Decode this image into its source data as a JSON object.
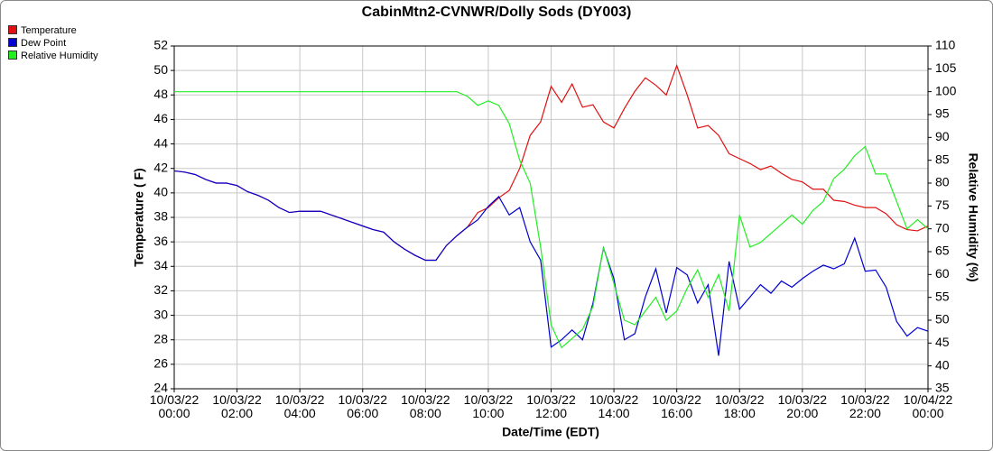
{
  "chart_data": {
    "type": "line",
    "title": "CabinMtn2-CVNWR/Dolly Sods (DY003)",
    "x_label": "Date/Time (EDT)",
    "y_label": "Temperature ( F)",
    "y2_label": "Relative Humidity (%)",
    "legend": "top-left",
    "grid": true,
    "xlim": [
      0,
      1440
    ],
    "xticks": [
      {
        "value": 0,
        "label": "10/03/22\n00:00"
      },
      {
        "value": 120,
        "label": "10/03/22\n02:00"
      },
      {
        "value": 240,
        "label": "10/03/22\n04:00"
      },
      {
        "value": 360,
        "label": "10/03/22\n06:00"
      },
      {
        "value": 480,
        "label": "10/03/22\n08:00"
      },
      {
        "value": 600,
        "label": "10/03/22\n10:00"
      },
      {
        "value": 720,
        "label": "10/03/22\n12:00"
      },
      {
        "value": 840,
        "label": "10/03/22\n14:00"
      },
      {
        "value": 960,
        "label": "10/03/22\n16:00"
      },
      {
        "value": 1080,
        "label": "10/03/22\n18:00"
      },
      {
        "value": 1200,
        "label": "10/03/22\n20:00"
      },
      {
        "value": 1320,
        "label": "10/03/22\n22:00"
      },
      {
        "value": 1440,
        "label": "10/04/22\n00:00"
      }
    ],
    "ylim": [
      24,
      52
    ],
    "yticks": [
      24,
      26,
      28,
      30,
      32,
      34,
      36,
      38,
      40,
      42,
      44,
      46,
      48,
      50,
      52
    ],
    "y2lim": [
      35,
      110
    ],
    "y2ticks": [
      35,
      40,
      45,
      50,
      55,
      60,
      65,
      70,
      75,
      80,
      85,
      90,
      95,
      100,
      105,
      110
    ],
    "x": [
      0,
      20,
      40,
      60,
      80,
      100,
      120,
      140,
      160,
      180,
      200,
      220,
      240,
      260,
      280,
      300,
      320,
      340,
      360,
      380,
      400,
      420,
      440,
      460,
      480,
      500,
      520,
      540,
      560,
      580,
      600,
      620,
      640,
      660,
      680,
      700,
      720,
      740,
      760,
      780,
      800,
      820,
      840,
      860,
      880,
      900,
      920,
      940,
      960,
      980,
      1000,
      1020,
      1040,
      1060,
      1080,
      1100,
      1120,
      1140,
      1160,
      1180,
      1200,
      1220,
      1240,
      1260,
      1280,
      1300,
      1320,
      1340,
      1360,
      1380,
      1400,
      1420,
      1440
    ],
    "series": [
      {
        "name": "Temperature",
        "color": "#e01010",
        "values": [
          41.8,
          41.7,
          41.5,
          41.1,
          40.8,
          40.8,
          40.6,
          40.1,
          39.8,
          39.4,
          38.8,
          38.4,
          38.5,
          38.5,
          38.5,
          38.2,
          37.9,
          37.6,
          37.3,
          37.0,
          36.8,
          36.0,
          35.4,
          34.9,
          34.5,
          34.5,
          35.7,
          36.5,
          37.2,
          38.4,
          38.8,
          39.6,
          40.2,
          42.0,
          44.7,
          45.8,
          48.7,
          47.4,
          48.9,
          47.0,
          47.2,
          45.8,
          45.3,
          46.9,
          48.3,
          49.4,
          48.8,
          48.0,
          50.4,
          48.0,
          45.3,
          45.5,
          44.7,
          43.2,
          42.8,
          42.4,
          41.9,
          42.2,
          41.6,
          41.1,
          40.9,
          40.3,
          40.3,
          39.4,
          39.3,
          39.0,
          38.8,
          38.8,
          38.3,
          37.4,
          37.0,
          36.9,
          37.3
        ]
      },
      {
        "name": "Dew Point",
        "color": "#0000d0",
        "values": [
          41.8,
          41.7,
          41.5,
          41.1,
          40.8,
          40.8,
          40.6,
          40.1,
          39.8,
          39.4,
          38.8,
          38.4,
          38.5,
          38.5,
          38.5,
          38.2,
          37.9,
          37.6,
          37.3,
          37.0,
          36.8,
          36.0,
          35.4,
          34.9,
          34.5,
          34.5,
          35.7,
          36.5,
          37.2,
          37.8,
          38.9,
          39.7,
          38.2,
          38.8,
          36.0,
          34.5,
          27.4,
          28.0,
          28.8,
          28.0,
          31.0,
          35.5,
          33.0,
          28.0,
          28.5,
          31.5,
          33.8,
          30.2,
          33.9,
          33.3,
          31.0,
          32.5,
          26.7,
          34.4,
          30.5,
          31.5,
          32.5,
          31.8,
          32.8,
          32.3,
          33.0,
          33.6,
          34.1,
          33.8,
          34.2,
          36.3,
          33.6,
          33.7,
          32.3,
          29.5,
          28.3,
          29.0,
          28.7
        ]
      },
      {
        "name": "Relative Humidity",
        "color": "#22ee22",
        "axis": "y2",
        "values": [
          100,
          100,
          100,
          100,
          100,
          100,
          100,
          100,
          100,
          100,
          100,
          100,
          100,
          100,
          100,
          100,
          100,
          100,
          100,
          100,
          100,
          100,
          100,
          100,
          100,
          100,
          100,
          100,
          99,
          97,
          98,
          97,
          93,
          85,
          80,
          66,
          49,
          44,
          46,
          48,
          53,
          66,
          58,
          50,
          49,
          52,
          55,
          50,
          52,
          57,
          61,
          55,
          60,
          52,
          73,
          66,
          67,
          69,
          71,
          73,
          71,
          74,
          76,
          81,
          83,
          86,
          88,
          82,
          82,
          76,
          70,
          72,
          70
        ]
      }
    ]
  }
}
